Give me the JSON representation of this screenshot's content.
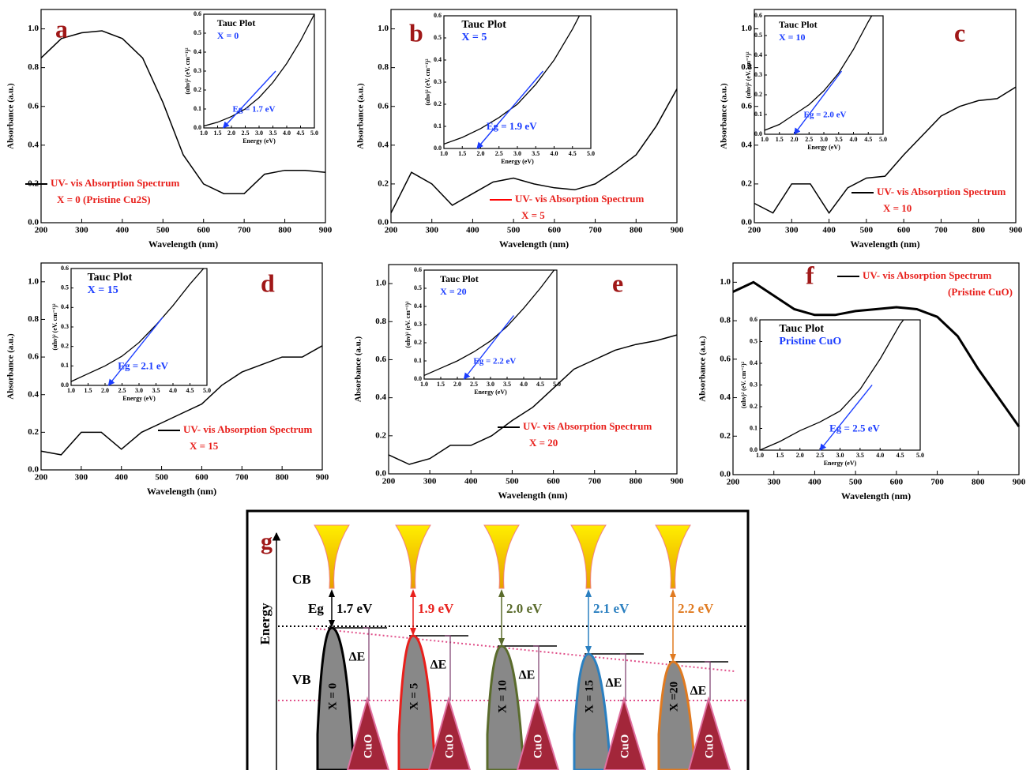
{
  "chart_data": [
    {
      "type": "line",
      "panel": "a",
      "x": [
        200,
        250,
        300,
        350,
        400,
        450,
        500,
        550,
        600,
        650,
        700,
        750,
        800,
        850,
        900
      ],
      "series": [
        {
          "name": "UV- vis Absorption Spectrum",
          "color": "#000000",
          "values": [
            0.85,
            0.95,
            0.98,
            0.99,
            0.95,
            0.85,
            0.62,
            0.35,
            0.2,
            0.15,
            0.15,
            0.25,
            0.27,
            0.27,
            0.26
          ]
        }
      ],
      "legend_color": "#000000",
      "line_width": 1.5,
      "note": "X = 0 (Pristine Cu2S)",
      "xlabel": "Wavelength (nm)",
      "ylabel": "Absorbance (a.u.)",
      "xlim": [
        200,
        900
      ],
      "ylim": [
        0,
        1.1
      ],
      "xticks": [
        200,
        300,
        400,
        500,
        600,
        700,
        800,
        900
      ],
      "yticks": [
        {
          "value": 0,
          "label": "0.0"
        },
        0.2,
        0.4,
        0.6,
        0.8,
        {
          "value": 1,
          "label": "1.0"
        }
      ],
      "inset": {
        "type": "line",
        "title": "Tauc Plot",
        "subtitle": "X = 0",
        "x": [
          1,
          1.5,
          2,
          2.5,
          3,
          3.5,
          4,
          4.5,
          5
        ],
        "values": [
          0.01,
          0.03,
          0.06,
          0.1,
          0.16,
          0.24,
          0.34,
          0.46,
          0.6
        ],
        "fit_x": [
          1.7,
          3.6
        ],
        "fit_y": [
          0,
          0.3
        ],
        "fit_label": "Eg = 1.7 eV",
        "xlabel": "Energy (eV)",
        "ylabel": "(αhν)² (eV. cm⁻¹)²",
        "xlim": [
          1,
          5
        ],
        "ylim": [
          0,
          0.6
        ],
        "xticks": [
          {
            "value": 1,
            "label": "1.0"
          },
          1.5,
          {
            "value": 2,
            "label": "2.0"
          },
          2.5,
          {
            "value": 3,
            "label": "3.0"
          },
          3.5,
          {
            "value": 4,
            "label": "4.0"
          },
          4.5,
          {
            "value": 5,
            "label": "5.0"
          }
        ],
        "yticks": [
          {
            "value": 0,
            "label": "0.0"
          },
          0.1,
          0.2,
          0.3,
          0.4,
          0.5,
          0.6
        ]
      }
    },
    {
      "type": "line",
      "panel": "b",
      "x": [
        200,
        250,
        300,
        350,
        400,
        450,
        500,
        550,
        600,
        650,
        700,
        750,
        800,
        850,
        900
      ],
      "series": [
        {
          "name": "UV- vis Absorption Spectrum",
          "color": "#000000",
          "values": [
            0.05,
            0.26,
            0.2,
            0.09,
            0.15,
            0.21,
            0.23,
            0.2,
            0.18,
            0.17,
            0.2,
            0.27,
            0.35,
            0.5,
            0.69
          ]
        }
      ],
      "legend_color": "#ff0000",
      "line_width": 1.5,
      "note": "X = 5",
      "xlabel": "Wavelength (nm)",
      "ylabel": "Absorbance (a.u.)",
      "xlim": [
        200,
        900
      ],
      "ylim": [
        0,
        1.1
      ],
      "xticks": [
        200,
        300,
        400,
        500,
        600,
        700,
        800,
        900
      ],
      "yticks": [
        {
          "value": 0,
          "label": "0.0"
        },
        0.2,
        0.4,
        0.6,
        0.8,
        {
          "value": 1,
          "label": "1.0"
        }
      ],
      "inset": {
        "type": "line",
        "title": "Tauc Plot",
        "subtitle": "X = 5",
        "x": [
          1,
          1.5,
          2,
          2.5,
          3,
          3.5,
          4,
          4.5,
          5
        ],
        "values": [
          0.02,
          0.05,
          0.09,
          0.14,
          0.2,
          0.29,
          0.4,
          0.54,
          0.7
        ],
        "fit_x": [
          1.9,
          3.7
        ],
        "fit_y": [
          0,
          0.35
        ],
        "fit_label": "Eg = 1.9 eV",
        "xlabel": "Energy (eV)",
        "ylabel": "(αhν)² (eV. cm⁻¹)²",
        "xlim": [
          1,
          5
        ],
        "ylim": [
          0,
          0.6
        ],
        "xticks": [
          {
            "value": 1,
            "label": "1.0"
          },
          1.5,
          {
            "value": 2,
            "label": "2.0"
          },
          2.5,
          {
            "value": 3,
            "label": "3.0"
          },
          3.5,
          {
            "value": 4,
            "label": "4.0"
          },
          4.5,
          {
            "value": 5,
            "label": "5.0"
          }
        ],
        "yticks": [
          {
            "value": 0,
            "label": "0.0"
          },
          0.1,
          0.2,
          0.3,
          0.4,
          0.5,
          0.6
        ]
      }
    },
    {
      "type": "line",
      "panel": "c",
      "x": [
        200,
        250,
        300,
        350,
        400,
        450,
        500,
        550,
        600,
        650,
        700,
        750,
        800,
        850,
        900
      ],
      "series": [
        {
          "name": "UV- vis Absorption Spectrum",
          "color": "#000000",
          "values": [
            0.1,
            0.05,
            0.2,
            0.2,
            0.05,
            0.18,
            0.23,
            0.24,
            0.35,
            0.45,
            0.55,
            0.6,
            0.63,
            0.64,
            0.7
          ]
        }
      ],
      "legend_color": "#000000",
      "line_width": 1.5,
      "note": "X = 10",
      "xlabel": "Wavelength (nm)",
      "ylabel": "Absorbance (a.u.)",
      "xlim": [
        200,
        900
      ],
      "ylim": [
        0,
        1.1
      ],
      "xticks": [
        200,
        300,
        400,
        500,
        600,
        700,
        800,
        900
      ],
      "yticks": [
        {
          "value": 0,
          "label": "0.0"
        },
        0.2,
        0.4,
        0.6,
        0.8,
        {
          "value": 1,
          "label": "1.0"
        }
      ],
      "inset": {
        "type": "line",
        "title": "Tauc Plot",
        "subtitle": "X = 10",
        "x": [
          1,
          1.5,
          2,
          2.5,
          3,
          3.5,
          4,
          4.5,
          5
        ],
        "values": [
          0.02,
          0.05,
          0.1,
          0.15,
          0.22,
          0.31,
          0.43,
          0.57,
          0.7
        ],
        "fit_x": [
          2.0,
          3.6
        ],
        "fit_y": [
          0,
          0.32
        ],
        "fit_label": "Eg = 2.0 eV",
        "xlabel": "Energy (eV)",
        "ylabel": "(αhν)² (eV. cm⁻¹)²",
        "xlim": [
          1,
          5
        ],
        "ylim": [
          0,
          0.6
        ],
        "xticks": [
          {
            "value": 1,
            "label": "1.0"
          },
          1.5,
          {
            "value": 2,
            "label": "2.0"
          },
          2.5,
          {
            "value": 3,
            "label": "3.0"
          },
          3.5,
          {
            "value": 4,
            "label": "4.0"
          },
          4.5,
          {
            "value": 5,
            "label": "5.0"
          }
        ],
        "yticks": [
          {
            "value": 0,
            "label": "0.0"
          },
          0.1,
          0.2,
          0.3,
          0.4,
          0.5,
          0.6
        ]
      }
    },
    {
      "type": "line",
      "panel": "d",
      "x": [
        200,
        250,
        300,
        350,
        400,
        450,
        500,
        550,
        600,
        650,
        700,
        750,
        800,
        850,
        900
      ],
      "series": [
        {
          "name": "UV- vis Absorption Spectrum",
          "color": "#000000",
          "values": [
            0.1,
            0.08,
            0.2,
            0.2,
            0.11,
            0.2,
            0.25,
            0.3,
            0.35,
            0.45,
            0.52,
            0.56,
            0.6,
            0.6,
            0.66
          ]
        }
      ],
      "legend_color": "#000000",
      "line_width": 1.5,
      "note": "X = 15",
      "xlabel": "Wavelength (nm)",
      "ylabel": "Absorbance (a.u.)",
      "xlim": [
        200,
        900
      ],
      "ylim": [
        0,
        1.1
      ],
      "xticks": [
        200,
        300,
        400,
        500,
        600,
        700,
        800,
        900
      ],
      "yticks": [
        {
          "value": 0,
          "label": "0.0"
        },
        0.2,
        0.4,
        0.6,
        0.8,
        {
          "value": 1,
          "label": "1.0"
        }
      ],
      "inset": {
        "type": "line",
        "title": "Tauc Plot",
        "subtitle": "X = 15",
        "x": [
          1,
          1.5,
          2,
          2.5,
          3,
          3.5,
          4,
          4.5,
          5
        ],
        "values": [
          0.02,
          0.06,
          0.1,
          0.15,
          0.22,
          0.31,
          0.41,
          0.52,
          0.62
        ],
        "fit_x": [
          2.1,
          3.7
        ],
        "fit_y": [
          0,
          0.35
        ],
        "fit_label": "Eg = 2.1 eV",
        "xlabel": "Energy (eV)",
        "ylabel": "(αhν)² (eV. cm⁻¹)²",
        "xlim": [
          1,
          5
        ],
        "ylim": [
          0,
          0.6
        ],
        "xticks": [
          {
            "value": 1,
            "label": "1.0"
          },
          1.5,
          {
            "value": 2,
            "label": "2.0"
          },
          2.5,
          {
            "value": 3,
            "label": "3.0"
          },
          3.5,
          {
            "value": 4,
            "label": "4.0"
          },
          4.5,
          {
            "value": 5,
            "label": "5.0"
          }
        ],
        "yticks": [
          {
            "value": 0,
            "label": "0.0"
          },
          0.1,
          0.2,
          0.3,
          0.4,
          0.5,
          0.6
        ]
      }
    },
    {
      "type": "line",
      "panel": "e",
      "x": [
        200,
        250,
        300,
        350,
        400,
        450,
        500,
        550,
        600,
        650,
        700,
        750,
        800,
        850,
        900
      ],
      "series": [
        {
          "name": "UV- vis Absorption Spectrum",
          "color": "#000000",
          "values": [
            0.1,
            0.05,
            0.08,
            0.15,
            0.15,
            0.2,
            0.28,
            0.35,
            0.45,
            0.55,
            0.6,
            0.65,
            0.68,
            0.7,
            0.73
          ]
        }
      ],
      "legend_color": "#000000",
      "line_width": 1.5,
      "note": "X = 20",
      "xlabel": "Wavelength (nm)",
      "ylabel": "Absorbance (a.u.)",
      "xlim": [
        200,
        900
      ],
      "ylim": [
        0,
        1.1
      ],
      "xticks": [
        200,
        300,
        400,
        500,
        600,
        700,
        800,
        900
      ],
      "yticks": [
        {
          "value": 0,
          "label": "0.0"
        },
        0.2,
        0.4,
        0.6,
        0.8,
        {
          "value": 1,
          "label": "1.0"
        }
      ],
      "inset": {
        "type": "line",
        "title": "Tauc Plot",
        "subtitle": "X = 20",
        "x": [
          1,
          1.5,
          2,
          2.5,
          3,
          3.5,
          4,
          4.5,
          5
        ],
        "values": [
          0.02,
          0.06,
          0.1,
          0.15,
          0.21,
          0.29,
          0.39,
          0.5,
          0.62
        ],
        "fit_x": [
          2.2,
          3.7
        ],
        "fit_y": [
          0,
          0.35
        ],
        "fit_label": "Eg = 2.2 eV",
        "xlabel": "Energy (eV)",
        "ylabel": "(αhν)² (eV. cm⁻¹)²",
        "xlim": [
          1,
          5
        ],
        "ylim": [
          0,
          0.6
        ],
        "xticks": [
          {
            "value": 1,
            "label": "1.0"
          },
          1.5,
          {
            "value": 2,
            "label": "2.0"
          },
          2.5,
          {
            "value": 3,
            "label": "3.0"
          },
          3.5,
          {
            "value": 4,
            "label": "4.0"
          },
          4.5,
          {
            "value": 5,
            "label": "5.0"
          }
        ],
        "yticks": [
          {
            "value": 0,
            "label": "0.0"
          },
          0.1,
          0.2,
          0.3,
          0.4,
          0.5,
          0.6
        ]
      }
    },
    {
      "type": "line",
      "panel": "f",
      "x": [
        200,
        250,
        300,
        350,
        400,
        450,
        500,
        550,
        600,
        650,
        700,
        750,
        800,
        850,
        900
      ],
      "series": [
        {
          "name": "UV- vis Absorption Spectrum",
          "color": "#000000",
          "values": [
            0.95,
            1.0,
            0.93,
            0.86,
            0.83,
            0.83,
            0.85,
            0.86,
            0.87,
            0.86,
            0.82,
            0.72,
            0.55,
            0.4,
            0.25
          ]
        }
      ],
      "legend_color": "#000000",
      "line_width": 3,
      "note": "(Pristine CuO)",
      "xlabel": "Wavelength (nm)",
      "ylabel": "Absorbance (a.u.)",
      "xlim": [
        200,
        900
      ],
      "ylim": [
        0,
        1.1
      ],
      "xticks": [
        200,
        300,
        400,
        500,
        600,
        700,
        800,
        900
      ],
      "yticks": [
        {
          "value": 0,
          "label": "0.0"
        },
        0.2,
        0.4,
        0.6,
        0.8,
        {
          "value": 1,
          "label": "1.0"
        }
      ],
      "inset": {
        "type": "line",
        "title": "Tauc Plot",
        "subtitle": "Pristine CuO",
        "x": [
          1,
          1.5,
          2,
          2.5,
          3,
          3.5,
          4,
          4.5,
          5
        ],
        "values": [
          0,
          0.04,
          0.09,
          0.13,
          0.18,
          0.28,
          0.42,
          0.58,
          0.7
        ],
        "fit_x": [
          2.5,
          3.8
        ],
        "fit_y": [
          0,
          0.3
        ],
        "fit_label": "Eg = 2.5 eV",
        "xlabel": "Energy (eV)",
        "ylabel": "(αhν)² (eV. cm⁻¹)²",
        "xlim": [
          1,
          5
        ],
        "ylim": [
          0,
          0.6
        ],
        "xticks": [
          {
            "value": 1,
            "label": "1.0"
          },
          1.5,
          {
            "value": 2,
            "label": "2.0"
          },
          2.5,
          {
            "value": 3,
            "label": "3.0"
          },
          3.5,
          {
            "value": 4,
            "label": "4.0"
          },
          4.5,
          {
            "value": 5,
            "label": "5.0"
          }
        ],
        "yticks": [
          {
            "value": 0,
            "label": "0.0"
          },
          0.1,
          0.2,
          0.3,
          0.4,
          0.5,
          0.6
        ]
      }
    }
  ],
  "diagram": {
    "label": "g",
    "axis_label": "Energy",
    "cb": "CB",
    "vb": "VB",
    "eg": "Eg",
    "columns": [
      {
        "gap": "1.7 eV",
        "x_label": "X = 0",
        "delta": "ΔE",
        "cuo": "CuO",
        "color": "#000000"
      },
      {
        "gap": "1.9 eV",
        "x_label": "X = 5",
        "delta": "ΔE",
        "cuo": "CuO",
        "color": "#e8201c"
      },
      {
        "gap": "2.0 eV",
        "x_label": "X = 10",
        "delta": "ΔE",
        "cuo": "CuO",
        "color": "#5a6b2c"
      },
      {
        "gap": "2.1 eV",
        "x_label": "X = 15",
        "delta": "ΔE",
        "cuo": "CuO",
        "color": "#2a7fc0"
      },
      {
        "gap": "2.2 eV",
        "x_label": "X =20",
        "delta": "ΔE",
        "cuo": "CuO",
        "color": "#e07a20"
      }
    ]
  }
}
